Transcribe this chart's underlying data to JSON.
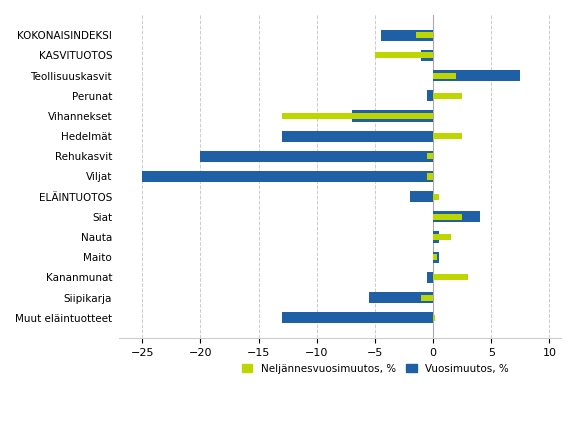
{
  "categories": [
    "KOKONAISINDEKSI",
    "KASVITUOTOS",
    "Teollisuuskasvit",
    "Perunat",
    "Vihannekset",
    "Hedelmät",
    "Rehukasvit",
    "Viljat",
    "ELÄINTUOTOS",
    "Siat",
    "Nauta",
    "Maito",
    "Kananmunat",
    "Siipikarja",
    "Muut eläintuotteet"
  ],
  "neljannnes": [
    -1.5,
    -5.0,
    2.0,
    2.5,
    -13.0,
    2.5,
    -0.5,
    -0.5,
    0.5,
    2.5,
    1.5,
    0.3,
    3.0,
    -1.0,
    0.2
  ],
  "vuosi": [
    -4.5,
    -1.0,
    7.5,
    -0.5,
    -7.0,
    -13.0,
    -20.0,
    -25.0,
    -2.0,
    4.0,
    0.5,
    0.5,
    -0.5,
    -5.5,
    -13.0
  ],
  "color_neljannes": "#bed600",
  "color_vuosi": "#1f5fa6",
  "xlim": [
    -27,
    11
  ],
  "xticks": [
    -25,
    -20,
    -15,
    -10,
    -5,
    0,
    5,
    10
  ],
  "legend_neljannes": "Neljännesvuosimuutos, %",
  "legend_vuosi": "Vuosimuutos, %",
  "background_color": "#ffffff",
  "grid_color": "#cccccc",
  "bar_height": 0.55
}
